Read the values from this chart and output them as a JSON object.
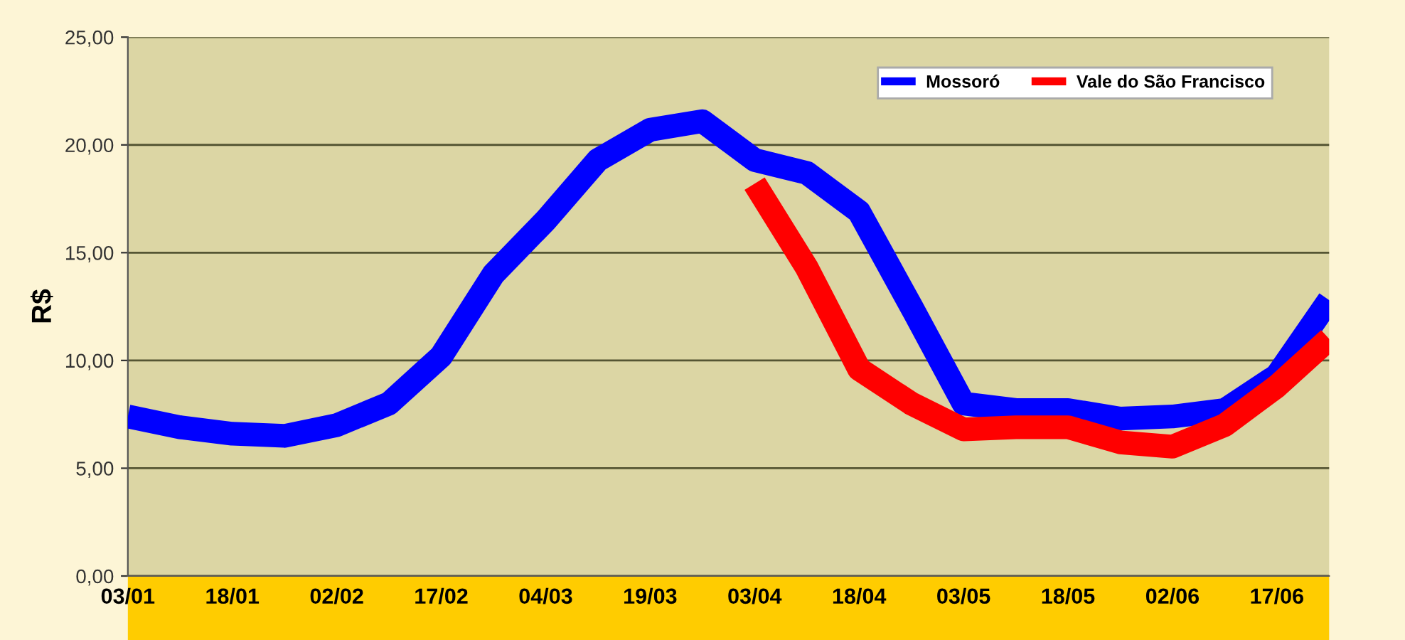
{
  "chart_data": {
    "type": "line",
    "ylabel": "R$",
    "categories": [
      "03/01",
      null,
      "18/01",
      null,
      "02/02",
      null,
      "17/02",
      null,
      "04/03",
      null,
      "19/03",
      null,
      "03/04",
      null,
      "18/04",
      null,
      "03/05",
      null,
      "18/05",
      null,
      "02/06",
      null,
      "17/06",
      null
    ],
    "series": [
      {
        "name": "Mossoró",
        "color": "#0000ff",
        "values": [
          7.4,
          6.9,
          6.6,
          6.5,
          7.0,
          8.0,
          10.2,
          14.0,
          16.5,
          19.3,
          20.7,
          21.1,
          19.3,
          18.7,
          16.9,
          12.5,
          8.0,
          7.7,
          7.7,
          7.3,
          7.4,
          7.7,
          9.3,
          12.8
        ]
      },
      {
        "name": "Vale do São Francisco",
        "color": "#ff0000",
        "values": [
          null,
          null,
          null,
          null,
          null,
          null,
          null,
          null,
          null,
          null,
          null,
          null,
          18.2,
          14.3,
          9.6,
          8.0,
          6.8,
          6.9,
          6.9,
          6.2,
          6.0,
          7.0,
          8.8,
          11.0
        ]
      }
    ],
    "ylim": [
      0,
      25
    ],
    "yticks": [
      {
        "value": 0,
        "label": "0,00"
      },
      {
        "value": 5,
        "label": "5,00"
      },
      {
        "value": 10,
        "label": "10,00"
      },
      {
        "value": 15,
        "label": "15,00"
      },
      {
        "value": 20,
        "label": "20,00"
      },
      {
        "value": 25,
        "label": "25,00"
      }
    ],
    "grid": "y",
    "legend": "top right",
    "line_style": "solid"
  }
}
